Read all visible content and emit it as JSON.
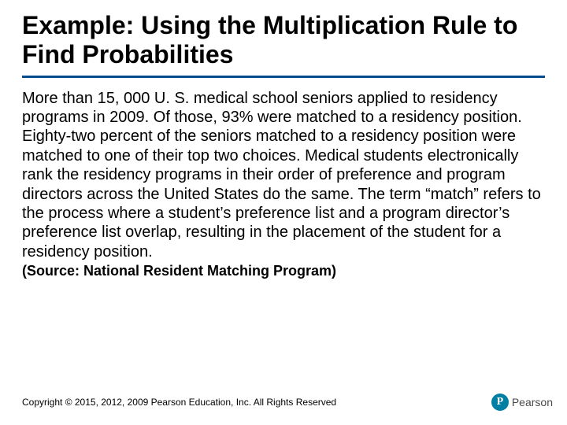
{
  "title": "Example: Using the Multiplication Rule to Find Probabilities",
  "body": "More than 15, 000 U. S. medical school seniors applied to residency programs in 2009. Of those, 93% were matched to a residency position. Eighty-two percent of the seniors matched to a residency position were matched to one of their top two choices. Medical students electronically rank the residency programs in their order of preference and program directors across the United States do the same. The term “match” refers to the process where a student’s preference list and a program director’s preference list overlap, resulting in the placement of the student for a residency position.",
  "source": "(Source: National Resident Matching Program)",
  "copyright": "Copyright © 2015, 2012, 2009 Pearson Education, Inc. All Rights Reserved",
  "logo": {
    "letter": "P",
    "brand": "Pearson"
  },
  "colors": {
    "underline": "#004b8d",
    "logo_circle": "#007fa3",
    "text": "#000000",
    "background": "#ffffff"
  }
}
